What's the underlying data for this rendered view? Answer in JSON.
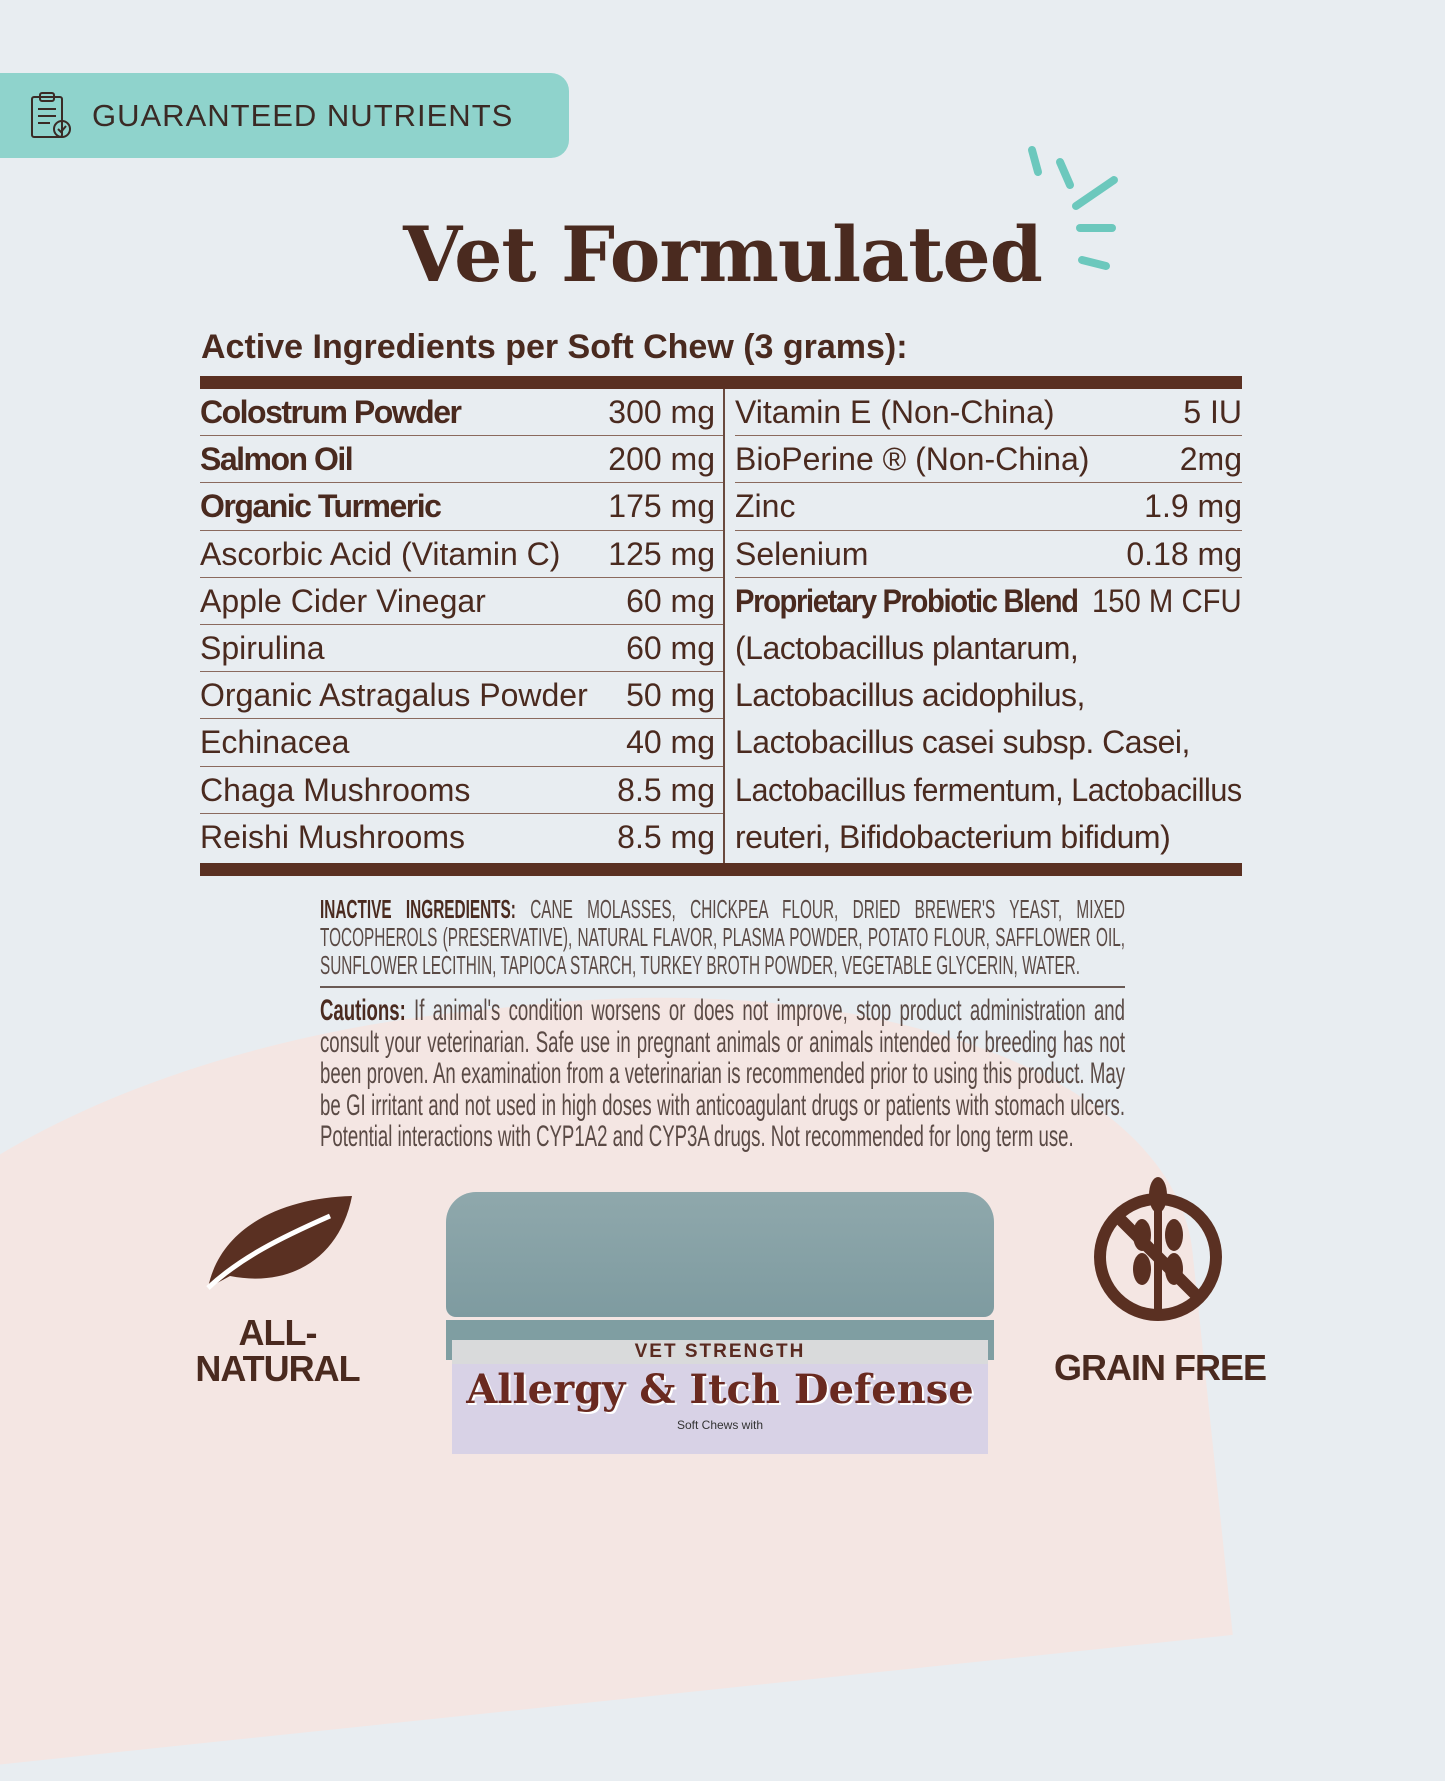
{
  "badge": {
    "icon": "clipboard-check-icon",
    "label": "GUARANTEED NUTRIENTS",
    "color": "#8fd3cc"
  },
  "title": "Vet Formulated",
  "subtitle": "Active Ingredients per Soft Chew (3 grams):",
  "left_rows": [
    {
      "name": "Colostrum Powder",
      "note": "",
      "amount": "300 mg",
      "bold": true
    },
    {
      "name": "Salmon Oil",
      "note": "",
      "amount": "200 mg",
      "bold": true
    },
    {
      "name": "Organic Turmeric",
      "note": "",
      "amount": "175 mg",
      "bold": true
    },
    {
      "name": "Ascorbic Acid",
      "note": " (Vitamin C)",
      "amount": "125 mg",
      "bold": false
    },
    {
      "name": "Apple Cider Vinegar",
      "note": "",
      "amount": "60 mg",
      "bold": false
    },
    {
      "name": "Spirulina",
      "note": "",
      "amount": "60 mg",
      "bold": false
    },
    {
      "name": "Organic Astragalus Powder",
      "note": "",
      "amount": "50 mg",
      "bold": false
    },
    {
      "name": "Echinacea",
      "note": "",
      "amount": "40 mg",
      "bold": false
    },
    {
      "name": "Chaga Mushrooms",
      "note": "",
      "amount": "8.5 mg",
      "bold": false
    },
    {
      "name": "Reishi Mushrooms",
      "note": "",
      "amount": "8.5 mg",
      "bold": false
    }
  ],
  "right_rows": [
    {
      "name": "Vitamin E (Non-China)",
      "amount": "5 IU"
    },
    {
      "name": "BioPerine ® (Non-China)",
      "amount": "2mg"
    },
    {
      "name": "Zinc",
      "amount": "1.9 mg"
    },
    {
      "name": "Selenium",
      "amount": "0.18 mg"
    },
    {
      "name": "Proprietary Probiotic Blend",
      "amount": "150 M CFU"
    }
  ],
  "probiotic_lines": [
    "(Lactobacillus plantarum,",
    "Lactobacillus acidophilus,",
    "Lactobacillus casei subsp. Casei,",
    "Lactobacillus fermentum, Lactobacillus",
    "reuteri, Bifidobacterium bifidum)"
  ],
  "inactive": {
    "label": "INACTIVE INGREDIENTS:",
    "text": " CANE MOLASSES, CHICKPEA FLOUR, DRIED BREWER'S YEAST, MIXED TOCOPHEROLS (PRESERVATIVE), NATURAL FLAVOR, PLASMA POWDER, POTATO FLOUR, SAFFLOWER OIL, SUNFLOWER LECITHIN, TAPIOCA STARCH, TURKEY BROTH POWDER, VEGETABLE GLYCERIN, WATER."
  },
  "cautions": {
    "label": "Cautions:",
    "text": " If animal's condition worsens or does not improve, stop product administration and consult your veterinarian. Safe use in pregnant animals or animals intended for breeding has not been proven. An examination from a veterinarian is recommended prior to using this product. May be GI irritant and not used in high doses with anticoagulant drugs or patients with stomach ulcers. Potential interactions with CYP1A2 and CYP3A drugs. Not recommended for long term use."
  },
  "features": [
    {
      "icon": "leaf-icon",
      "label": "ALL-NATURAL"
    },
    {
      "icon": "no-grain-icon",
      "label": "GRAIN FREE"
    }
  ],
  "product": {
    "top": "VET STRENGTH",
    "name": "Allergy & Itch Defense",
    "tagline": "Soft Chews with"
  },
  "colors": {
    "brown": "#4a2a1f",
    "teal": "#8fd3cc",
    "background": "#e8edf1"
  }
}
